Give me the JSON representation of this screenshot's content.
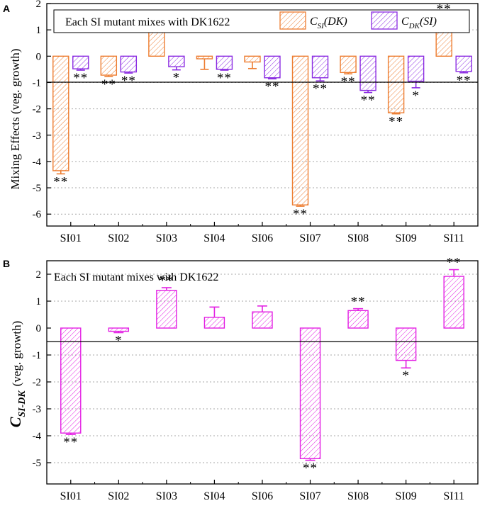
{
  "chart_data": [
    {
      "type": "bar",
      "panel": "A",
      "title": "Each SI mutant mixes with DK1622",
      "categories": [
        "SI01",
        "SI02",
        "SI03",
        "SI04",
        "SI06",
        "SI07",
        "SI08",
        "SI09",
        "SI11"
      ],
      "ylabel": "Mixing Effects (veg. growth)",
      "xlabel": "",
      "ylim": [
        -6.5,
        2
      ],
      "yticks": [
        2,
        1,
        0,
        -1,
        -2,
        -3,
        -4,
        -5,
        -6
      ],
      "grid": true,
      "legend_position": "top",
      "series": [
        {
          "name": "C_SI(DK)",
          "label_main": "C",
          "label_sub": "SI",
          "label_arg": "(DK)",
          "color": "#ED7D31",
          "values": [
            -4.35,
            -0.72,
            1.0,
            -0.1,
            -0.22,
            -5.65,
            -0.62,
            -2.15,
            1.35
          ],
          "errors": [
            0.12,
            0.05,
            0.04,
            0.4,
            0.25,
            0.05,
            0.05,
            0.04,
            0.18
          ],
          "significance": [
            "**",
            "**",
            "**",
            "",
            "",
            "**",
            "**",
            "**",
            "**"
          ]
        },
        {
          "name": "C_DK(SI)",
          "label_main": "C",
          "label_sub": "DK",
          "label_arg": "(SI)",
          "color": "#8B2BE2",
          "values": [
            -0.48,
            -0.6,
            -0.4,
            -0.5,
            -0.82,
            -0.82,
            -1.3,
            -0.95,
            -0.58
          ],
          "errors": [
            0.05,
            0.04,
            0.12,
            0.03,
            0.04,
            0.12,
            0.08,
            0.25,
            0.05
          ],
          "significance": [
            "**",
            "**",
            "*",
            "**",
            "**",
            "**",
            "**",
            "*",
            "**"
          ]
        }
      ]
    },
    {
      "type": "bar",
      "panel": "B",
      "title": "Each SI mutant mixes with DK1622",
      "categories": [
        "SI01",
        "SI02",
        "SI03",
        "SI04",
        "SI06",
        "SI07",
        "SI08",
        "SI09",
        "SI11"
      ],
      "ylabel": "C_SI-DK (veg. growth)",
      "ylabel_main": "C",
      "ylabel_sub": "SI-DK",
      "ylabel_rest": "(veg. growth)",
      "xlabel": "",
      "ylim": [
        -5.5,
        2.5
      ],
      "yticks": [
        2,
        1,
        0,
        -1,
        -2,
        -3,
        -4,
        -5
      ],
      "grid": true,
      "series": [
        {
          "name": "C_SI-DK",
          "color": "#E31FE3",
          "values": [
            -3.9,
            -0.12,
            1.4,
            0.4,
            0.6,
            -4.85,
            0.65,
            -1.2,
            1.92
          ],
          "errors": [
            0.05,
            0.05,
            0.1,
            0.38,
            0.22,
            0.06,
            0.07,
            0.28,
            0.25
          ],
          "significance": [
            "**",
            "*",
            "**",
            "",
            "",
            "**",
            "**",
            "*",
            "**"
          ]
        }
      ]
    }
  ]
}
